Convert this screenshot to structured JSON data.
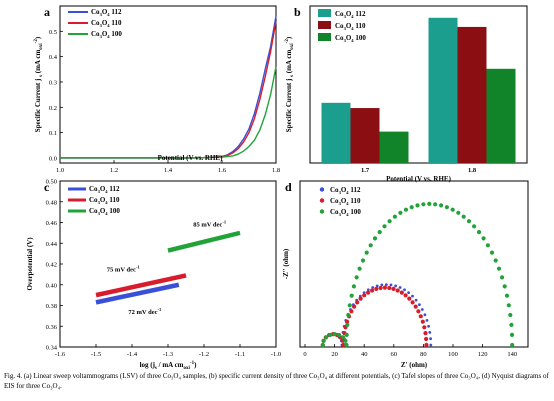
{
  "caption": "Fig. 4. (a) Linear sweep voltammograms (LSV) of three Co₃O₄ samples, (b) specific current density of three Co₃O₄ at different potentials, (c) Tafel slopes of three Co₃O₄, (d) Nyquist diagrams of EIS for three Co₃O₄.",
  "colors": {
    "s112": "#3a4fd8",
    "s110": "#d81c2c",
    "s100": "#22a33a",
    "b112": "#1b9e8e",
    "b110": "#8b0f12",
    "b100": "#11842a"
  },
  "chart_data": [
    {
      "panel": "a",
      "type": "line",
      "xlabel": "Potential (V vs. RHE)",
      "ylabel": "Specific Current j",
      "ylabel_sub": "s",
      "ylabel_unit": "(mA cm",
      "ylabel_unit_sub": "oxi",
      "ylabel_unit_sup": "-2",
      "ylabel_unit_close": ")",
      "xlim": [
        1.0,
        1.8
      ],
      "ylim": [
        -0.02,
        0.6
      ],
      "xticks": [
        "1.0",
        "1.2",
        "1.4",
        "1.6",
        "1.8"
      ],
      "yticks": [
        "0.0",
        "0.1",
        "0.2",
        "0.3",
        "0.4",
        "0.5"
      ],
      "legend": [
        {
          "base": "Co",
          "s1": "3",
          "mid": "O",
          "s2": "4",
          "tail": " 112"
        },
        {
          "base": "Co",
          "s1": "3",
          "mid": "O",
          "s2": "4",
          "tail": " 110"
        },
        {
          "base": "Co",
          "s1": "3",
          "mid": "O",
          "s2": "4",
          "tail": " 100"
        }
      ],
      "series": [
        {
          "name": "Co3O4 112",
          "x": [
            1.0,
            1.3,
            1.5,
            1.55,
            1.6,
            1.62,
            1.64,
            1.66,
            1.68,
            1.7,
            1.72,
            1.74,
            1.76,
            1.78,
            1.8
          ],
          "y": [
            0.0,
            0.0,
            0.0,
            0.002,
            0.006,
            0.012,
            0.025,
            0.045,
            0.075,
            0.115,
            0.175,
            0.255,
            0.35,
            0.44,
            0.56
          ]
        },
        {
          "name": "Co3O4 110",
          "x": [
            1.0,
            1.3,
            1.5,
            1.55,
            1.6,
            1.62,
            1.64,
            1.66,
            1.68,
            1.7,
            1.72,
            1.74,
            1.76,
            1.78,
            1.8
          ],
          "y": [
            0.0,
            0.0,
            0.0,
            0.002,
            0.005,
            0.01,
            0.02,
            0.037,
            0.063,
            0.1,
            0.155,
            0.23,
            0.32,
            0.42,
            0.54
          ]
        },
        {
          "name": "Co3O4 100",
          "x": [
            1.0,
            1.3,
            1.5,
            1.6,
            1.64,
            1.66,
            1.68,
            1.7,
            1.72,
            1.74,
            1.76,
            1.78,
            1.8
          ],
          "y": [
            0.0,
            0.0,
            0.0,
            0.003,
            0.008,
            0.015,
            0.027,
            0.045,
            0.07,
            0.11,
            0.17,
            0.25,
            0.36
          ]
        }
      ]
    },
    {
      "panel": "b",
      "type": "bar",
      "xlabel": "Potential (V vs. RHE)",
      "ylabel": "Specific Current j",
      "ylabel_sub": "s",
      "ylabel_unit": "(mA cm",
      "ylabel_unit_sub": "oxi",
      "ylabel_unit_sup": "-2",
      "ylabel_unit_close": ")",
      "categories": [
        "1.7",
        "1.8"
      ],
      "ylim": [
        0,
        0.6
      ],
      "legend": [
        {
          "base": "Co",
          "s1": "3",
          "mid": "O",
          "s2": "4",
          "tail": " 112"
        },
        {
          "base": "Co",
          "s1": "3",
          "mid": "O",
          "s2": "4",
          "tail": " 110"
        },
        {
          "base": "Co",
          "s1": "3",
          "mid": "O",
          "s2": "4",
          "tail": " 100"
        }
      ],
      "series": [
        {
          "name": "Co3O4 112",
          "values": [
            0.23,
            0.555
          ]
        },
        {
          "name": "Co3O4 110",
          "values": [
            0.21,
            0.52
          ]
        },
        {
          "name": "Co3O4 100",
          "values": [
            0.12,
            0.36
          ]
        }
      ]
    },
    {
      "panel": "c",
      "type": "line",
      "xlabel": "log (j",
      "xlabel_sub": "s",
      "xlabel_unit": " / mA cm",
      "xlabel_unit_sub": "oxi",
      "xlabel_unit_sup": "-1",
      "xlabel_close": ")",
      "ylabel": "Overpotential (V)",
      "xlim": [
        -1.6,
        -1.0
      ],
      "ylim": [
        0.34,
        0.5
      ],
      "xticks": [
        "-1.6",
        "-1.5",
        "-1.4",
        "-1.3",
        "-1.2",
        "-1.1",
        "-1.0"
      ],
      "yticks": [
        "0.34",
        "0.36",
        "0.38",
        "0.40",
        "0.42",
        "0.44",
        "0.46",
        "0.48",
        "0.50"
      ],
      "legend": [
        {
          "base": "Co",
          "s1": "3",
          "mid": "O",
          "s2": "4",
          "tail": " 112"
        },
        {
          "base": "Co",
          "s1": "3",
          "mid": "O",
          "s2": "4",
          "tail": " 110"
        },
        {
          "base": "Co",
          "s1": "3",
          "mid": "O",
          "s2": "4",
          "tail": " 100"
        }
      ],
      "annotations": [
        {
          "text": "72 mV dec",
          "sup": "-1",
          "at": "below-blue"
        },
        {
          "text": "75 mV dec",
          "sup": "-1",
          "at": "above-red"
        },
        {
          "text": "85 mV dec",
          "sup": "-1",
          "at": "above-green"
        }
      ],
      "series": [
        {
          "name": "Co3O4 112",
          "x": [
            -1.5,
            -1.27
          ],
          "y": [
            0.383,
            0.4
          ]
        },
        {
          "name": "Co3O4 110",
          "x": [
            -1.5,
            -1.25
          ],
          "y": [
            0.39,
            0.409
          ]
        },
        {
          "name": "Co3O4 100",
          "x": [
            -1.3,
            -1.1
          ],
          "y": [
            0.433,
            0.45
          ]
        }
      ]
    },
    {
      "panel": "d",
      "type": "scatter",
      "xlabel": "Z' (ohm)",
      "ylabel": "-Z'' (ohm)",
      "xlim": [
        0,
        150
      ],
      "ylim": [
        0,
        50
      ],
      "xticks": [
        "0",
        "20",
        "40",
        "60",
        "80",
        "100",
        "120",
        "140"
      ],
      "legend": [
        {
          "base": "Co",
          "s1": "3",
          "mid": "O",
          "s2": "4",
          "tail": " 112"
        },
        {
          "base": "Co",
          "s1": "3",
          "mid": "O",
          "s2": "4",
          "tail": " 110"
        },
        {
          "base": "Co",
          "s1": "3",
          "mid": "O",
          "s2": "4",
          "tail": " 100"
        }
      ],
      "series": [
        {
          "name": "Co3O4 112",
          "semicircle": {
            "start": 25,
            "end": 85,
            "height": 19.5
          },
          "small_arc": {
            "start": 12,
            "end": 25,
            "height": 3.5
          }
        },
        {
          "name": "Co3O4 110",
          "semicircle": {
            "start": 26,
            "end": 82,
            "height": 18.5
          },
          "small_arc": {
            "start": 12,
            "end": 26,
            "height": 3.5
          }
        },
        {
          "name": "Co3O4 100",
          "semicircle": {
            "start": 28,
            "end": 140,
            "height": 45.5
          },
          "small_arc": {
            "start": 12,
            "end": 28,
            "height": 3.5
          }
        }
      ]
    }
  ],
  "panel_labels": [
    "a",
    "b",
    "c",
    "d"
  ]
}
